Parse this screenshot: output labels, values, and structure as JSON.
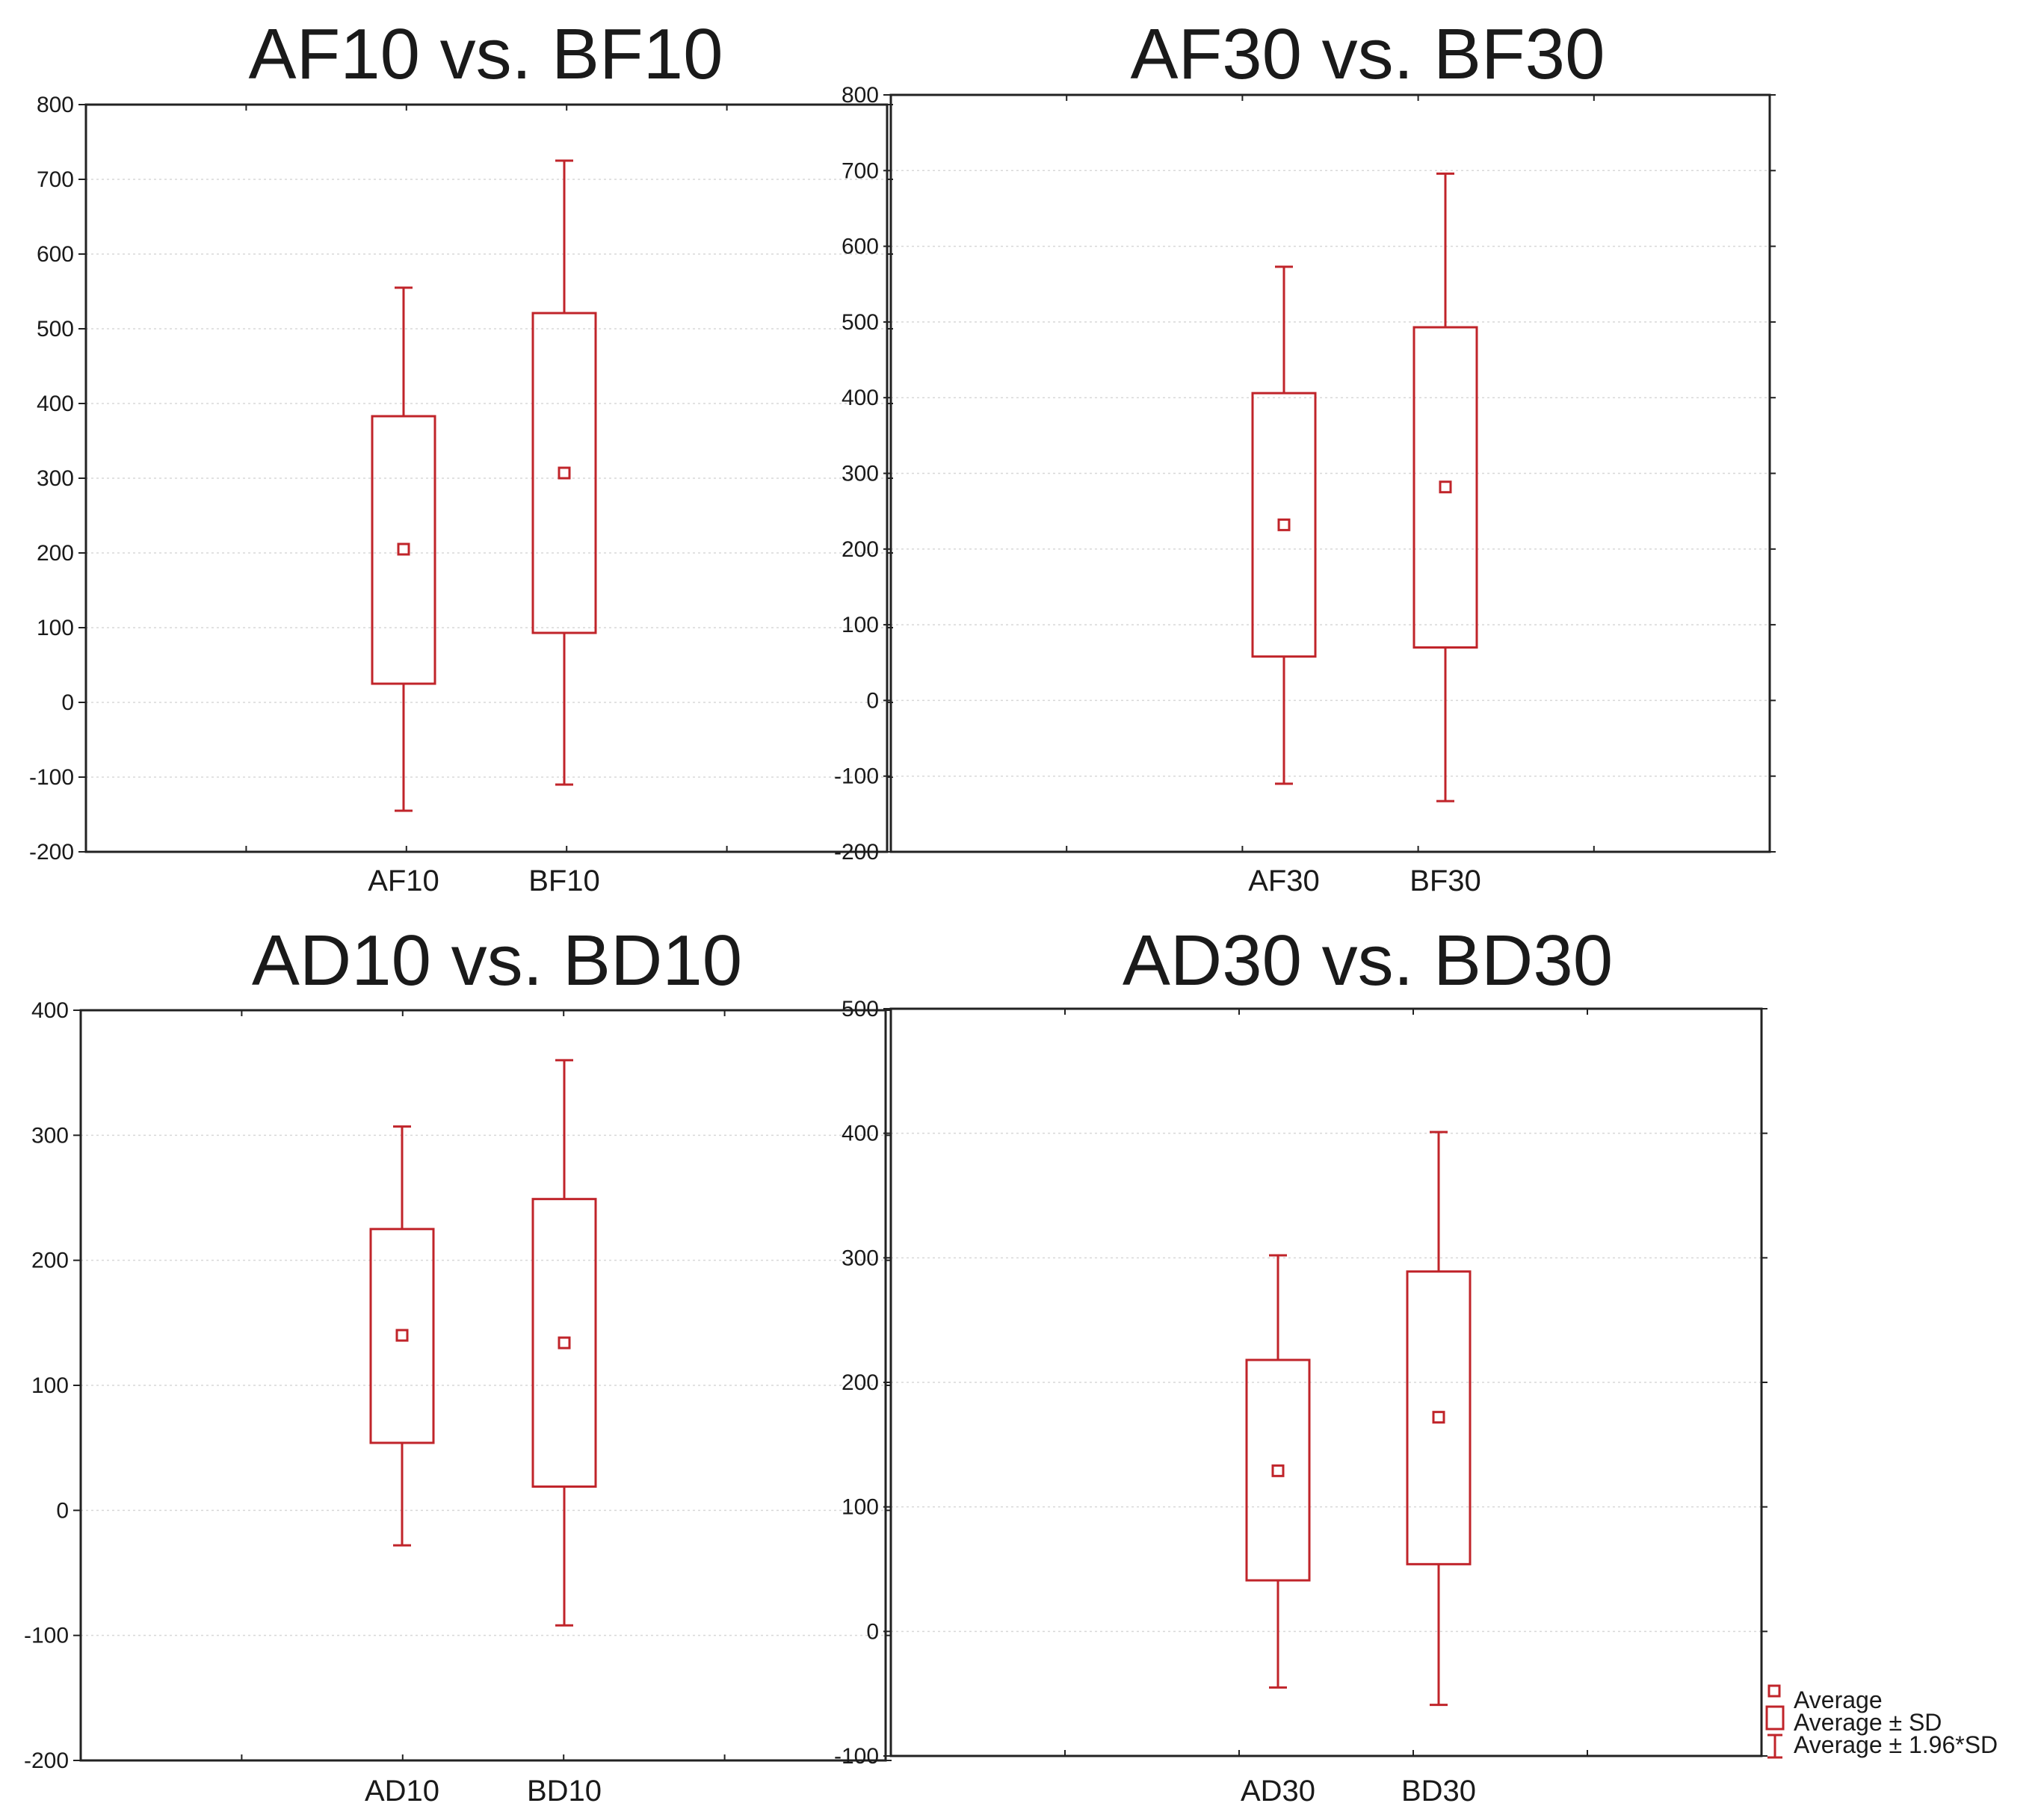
{
  "chart_data": [
    {
      "type": "boxplot",
      "title": "AF10 vs. BF10",
      "categories": [
        "AF10",
        "BF10"
      ],
      "ylim": [
        -200,
        800
      ],
      "yticks": [
        800,
        700,
        600,
        500,
        400,
        300,
        200,
        100,
        0,
        -100,
        -200
      ],
      "series": [
        {
          "name": "AF10",
          "average": 205,
          "sd_low": 25,
          "sd_high": 383,
          "ci_low": -145,
          "ci_high": 555
        },
        {
          "name": "BF10",
          "average": 307,
          "sd_low": 93,
          "sd_high": 521,
          "ci_low": -110,
          "ci_high": 725
        }
      ]
    },
    {
      "type": "boxplot",
      "title": "AF30 vs. BF30",
      "categories": [
        "AF30",
        "BF30"
      ],
      "ylim": [
        -200,
        800
      ],
      "yticks": [
        800,
        700,
        600,
        500,
        400,
        300,
        200,
        100,
        0,
        -100,
        -200
      ],
      "series": [
        {
          "name": "AF30",
          "average": 232,
          "sd_low": 58,
          "sd_high": 406,
          "ci_low": -110,
          "ci_high": 573
        },
        {
          "name": "BF30",
          "average": 282,
          "sd_low": 70,
          "sd_high": 493,
          "ci_low": -133,
          "ci_high": 696
        }
      ]
    },
    {
      "type": "boxplot",
      "title": "AD10 vs. BD10",
      "categories": [
        "AD10",
        "BD10"
      ],
      "ylim": [
        -200,
        400
      ],
      "yticks": [
        400,
        300,
        200,
        100,
        0,
        -100,
        -200
      ],
      "series": [
        {
          "name": "AD10",
          "average": 140,
          "sd_low": 54,
          "sd_high": 225,
          "ci_low": -28,
          "ci_high": 307
        },
        {
          "name": "BD10",
          "average": 134,
          "sd_low": 19,
          "sd_high": 249,
          "ci_low": -92,
          "ci_high": 360
        }
      ]
    },
    {
      "type": "boxplot",
      "title": "AD30 vs. BD30",
      "categories": [
        "AD30",
        "BD30"
      ],
      "ylim": [
        -100,
        500
      ],
      "yticks": [
        500,
        400,
        300,
        200,
        100,
        0,
        -100
      ],
      "series": [
        {
          "name": "AD30",
          "average": 129,
          "sd_low": 41,
          "sd_high": 218,
          "ci_low": -45,
          "ci_high": 302
        },
        {
          "name": "BD30",
          "average": 172,
          "sd_low": 54,
          "sd_high": 289,
          "ci_low": -59,
          "ci_high": 401
        }
      ]
    }
  ],
  "legend": {
    "items": [
      "Average",
      "Average ± SD",
      "Average ± 1.96*SD"
    ]
  },
  "colors": {
    "series": "#c0242a",
    "frame": "#222222",
    "grid": "#d8d8d8"
  }
}
